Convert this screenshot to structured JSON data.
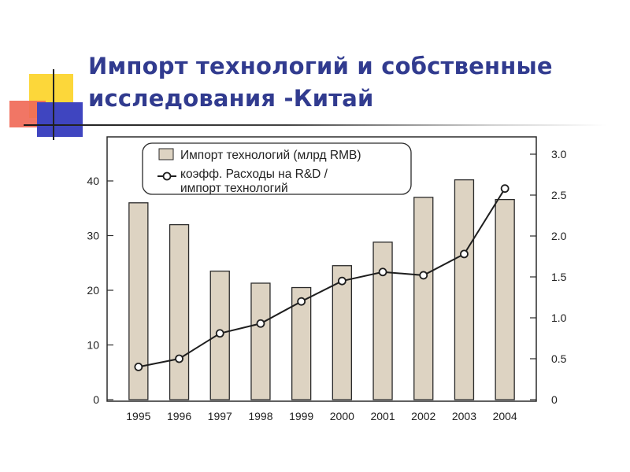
{
  "slide": {
    "title_line1": "Импорт технологий и собственные",
    "title_line2": "исследования -Китай"
  },
  "colors": {
    "title": "#313b8f",
    "bar_fill": "#ddd3c2",
    "bar_stroke": "#2a2a2a",
    "line": "#1e1e1e",
    "deco_yellow": "#fcd73a",
    "deco_red": "#f06a58",
    "deco_blue": "#3f45c0"
  },
  "chart_data": {
    "type": "bar",
    "categories": [
      "1995",
      "1996",
      "1997",
      "1998",
      "1999",
      "2000",
      "2001",
      "2002",
      "2003",
      "2004"
    ],
    "series": [
      {
        "name": "Импорт технологий (млрд RMB)",
        "type": "bar",
        "axis": "left",
        "values": [
          36,
          32,
          23.5,
          21.3,
          20.5,
          24.5,
          28.8,
          37,
          40.2,
          36.6
        ]
      },
      {
        "name": "коэфф. Расходы на R&D / импорт технологий",
        "type": "line",
        "axis": "right",
        "values": [
          0.4,
          0.5,
          0.81,
          0.93,
          1.2,
          1.45,
          1.56,
          1.52,
          1.78,
          2.58
        ]
      }
    ],
    "y_left": {
      "min": 0,
      "max": 45,
      "ticks": [
        0,
        10,
        20,
        30,
        40
      ]
    },
    "y_right": {
      "min": 0,
      "max": 3.2,
      "ticks": [
        "0",
        "0.5",
        "1.0",
        "1.5",
        "2.0",
        "2.5",
        "3.0"
      ],
      "tick_values": [
        0,
        0.5,
        1,
        1.5,
        2,
        2.5,
        3
      ]
    },
    "legend": {
      "position": "top-left",
      "bar_label": "Импорт технологий (млрд RMB)",
      "line_label_1": "коэфф. Расходы на R&D /",
      "line_label_2": "импорт технологий"
    },
    "grid": false
  }
}
